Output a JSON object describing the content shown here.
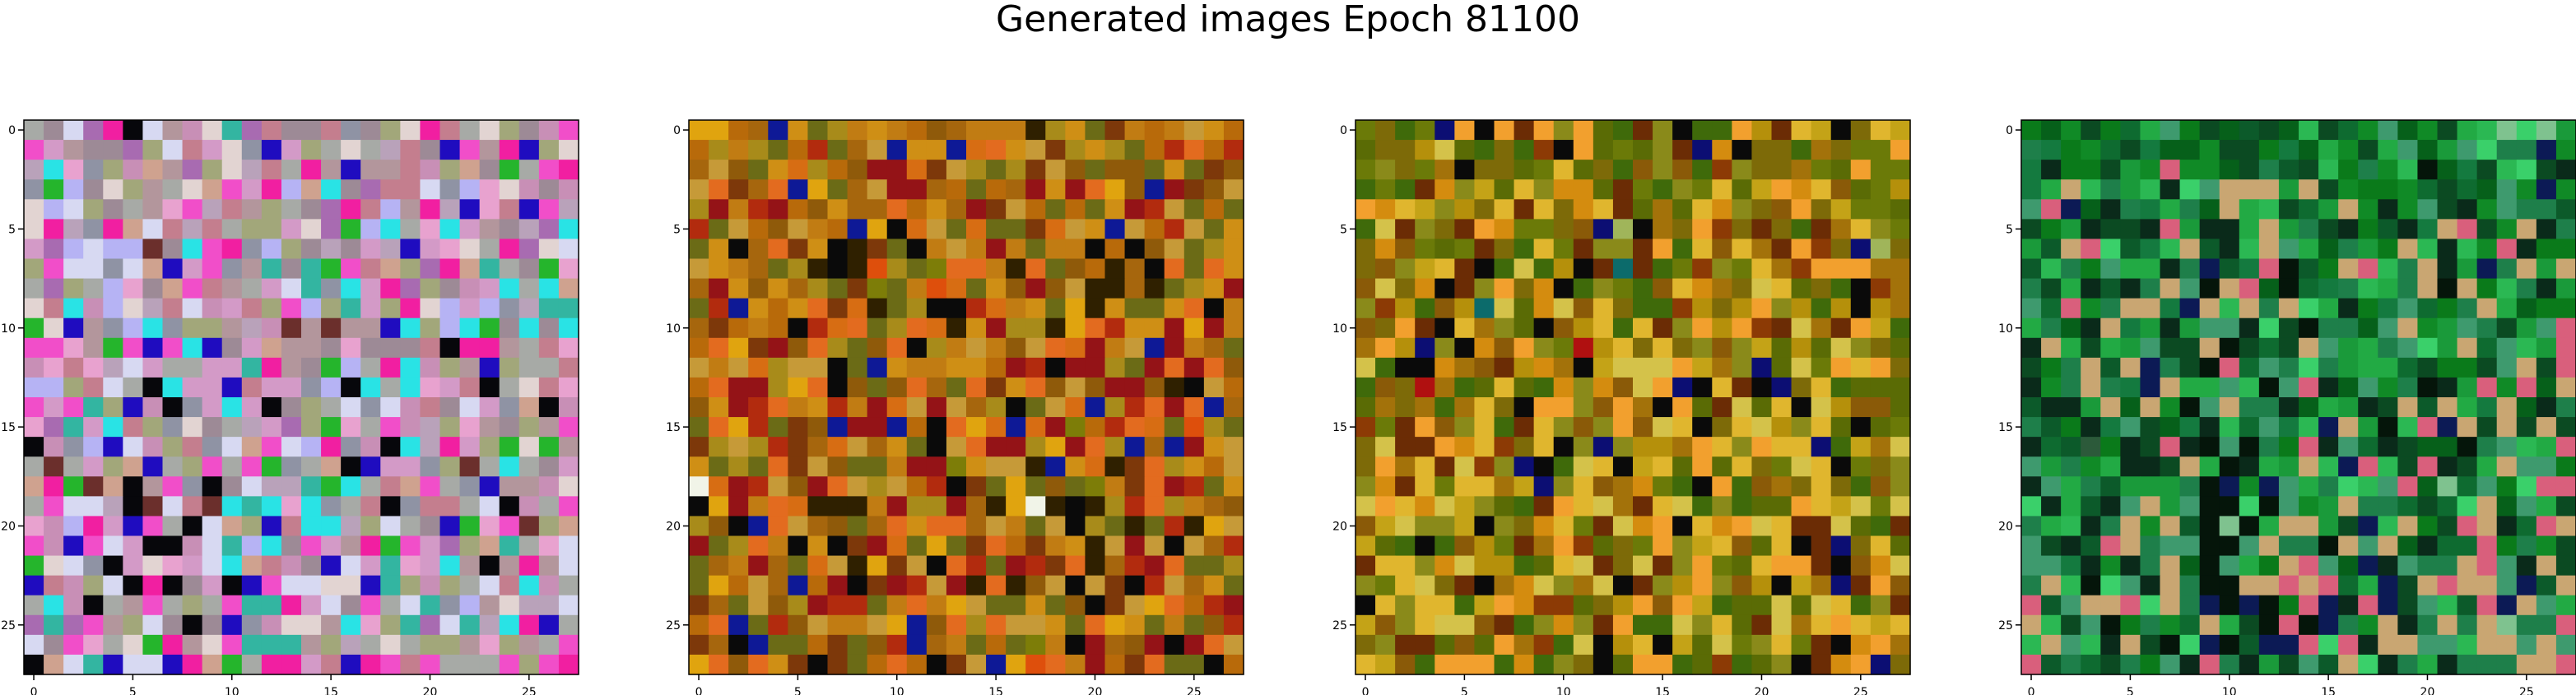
{
  "title": "Generated images Epoch 81100",
  "palettes": {
    "pink": [
      "#b3969c",
      "#9d8a96",
      "#c88fb6",
      "#b9a2ba",
      "#d39ac7",
      "#a7aaa6",
      "#e8a2cf",
      "#cfa28f",
      "#8f93a4",
      "#a86bb1",
      "#e2d4d2",
      "#d7d9f2",
      "#a2a77a",
      "#c47e8e",
      "#f14ec9",
      "#f11fa1",
      "#33b5a1",
      "#1f0cbf",
      "#07070b",
      "#29e3e5",
      "#25b52c",
      "#b6b3f4",
      "#6b2f2c"
    ],
    "orange": [
      "#c17c13",
      "#a6660d",
      "#b86a0a",
      "#cf8f15",
      "#8f5a0a",
      "#a88b1a",
      "#e0a40f",
      "#7d380a",
      "#b22b0e",
      "#d76d13",
      "#6b6b16",
      "#e36b1f",
      "#c69a38",
      "#941317",
      "#0a0a0a",
      "#2f2000",
      "#0e1996",
      "#f1f4e8",
      "#de4f0c",
      "#7d7d08"
    ],
    "olive": [
      "#7d6a08",
      "#6b7a08",
      "#8a5a08",
      "#a3720a",
      "#b5900b",
      "#5a6b05",
      "#c4a317",
      "#8c3a05",
      "#6b2c05",
      "#d48c0f",
      "#8a8a1a",
      "#3f6a0a",
      "#d4c24a",
      "#f2a02e",
      "#e0b62e",
      "#0a0a0a",
      "#0c0e73",
      "#a0b55a",
      "#b01010",
      "#0c6b6b"
    ],
    "green": [
      "#0a7a1a",
      "#108a26",
      "#06601a",
      "#1a9a3a",
      "#22aa44",
      "#0e6b30",
      "#2bb853",
      "#3ad06a",
      "#0c5a2a",
      "#147a3f",
      "#0b4a22",
      "#1e7f4a",
      "#0a2a1a",
      "#3e9a6e",
      "#c9a672",
      "#d95f7c",
      "#0c1a55",
      "#05150a",
      "#7fc28f",
      "#2c5a3a"
    ]
  },
  "chart_data": [
    {
      "type": "heatmap",
      "title": "",
      "xlabel": "",
      "ylabel": "",
      "xlim": [
        -0.5,
        27.5
      ],
      "ylim": [
        27.5,
        -0.5
      ],
      "xticks": [
        0,
        5,
        10,
        15,
        20,
        25
      ],
      "yticks": [
        0,
        5,
        10,
        15,
        20,
        25
      ],
      "grid": false,
      "palette": "pink",
      "rows": [
        "51B9FIB02AG9D11D81CAFD5AC12E",
        "E40119CBD4A8H4C5A53D1HE0FHCA",
        "3J68C2709CA3D5F0H00D2C71K5EF",
        "8KL1AC05A7E4FL7J19DDB8L6A212",
        "ALBC1506E3D0C519FDL0F3H6DHE3",
        "AF38F7BD3D5CC4A9KLJ56J40O39J",
        "49LBLLM1JEF8LCOQ14QH46A5F9AB",
        "CEBB8B7H4E80G1GKED7C9F7G51K6",
        "59C5L6O7EDNSRBG8J4F9C1P4J5J7",
        "ADJ2LA3DBP4DCELCG4CFAL4L83GG",
        "KAH08LJ8CC0Q2MNMN0HJCLJKOJ1J",
        "EE60KEHEJHOR7NNO6OO1DIFF0SD6",
        "26D63B45SRRGFNOKLSFJ2CNHC5SD",
        "LLCDBSIJRRHDRRVLIJSJ64DISAD6",
        "E4EGCHPIVRJRI1C5B8B2D1B4V7I2",
        "69G4JDC8A1SQR9CK6SE23C6N1C0E",
        "I28LHB2CD8B7EBLFV2IJ3F4CKAK0",
        "SMS4C7HSCESEKVS7IHRR8CMSJS14",
        "7FKM7INE8I1B33GKJSD7ES8HN02A",
        "5EBB3IMBDMJGJ6J8SDIVDD5BI25E",
        "62LF4HE5IB7CHDJJ3CB51HK6EMC7",
        "E2HEB4II2BGLJ1E40FKE49C7G56B",
        "KAB8I4A64BJ7D21HB4G64J0INF0B",
        "HD2CBIFI14IHEBBAAHGC2C5BDJ25",
        "5J2I50E5C5EGGF4B1E5BG8L0A33B",
        "9G9E0CB1I1H82AA0J6CG9BG3JFH5",
        "B1E65AKF0AEGGG0C35A5CC06C05E",
        "I7BGHBBHF7K5FF4DHFEDE555ECEF"
      ]
    },
    {
      "type": "heatmap",
      "title": "",
      "xlabel": "",
      "ylabel": "",
      "xlim": [
        -0.5,
        27.5
      ],
      "ylim": [
        27.5,
        -0.5
      ],
      "xticks": [
        0,
        5,
        10,
        15,
        20,
        25
      ],
      "yticks": [
        0,
        5,
        10,
        15,
        20,
        25
      ],
      "grid": false,
      "palette": "orange",
      "rows": [
        "6621G3A5030241000F53A7020C32",
        "2505A28A1CG33G9B3C7535A28B28",
        "1C4A39524DD97C5A57C4A44A3A74",
        "CB71BG6A1CDD12A21D3DB64GD74C",
        "5D08D24311B231D7C2A2A3D8CA2A",
        "8AC24C02G6E9CA9AA79C3GC28CA3",
        "A3E1B73EF7AE0C0D0A00E2E4CA53",
        "C301A5FEFI5AJBB0FBA42F1EBAB3",
        "1D34315A7JAKI9A34D4CFF1FA53D",
        "A8G323B79FA5EE8903A6F3AA3BE0",
        "17202E89BA5B9F3D55F6B833D6D0",
        "2B67D4B5A4BE50C04CB9D0CGD01A",
        "C0C95CCEAG300332D8EDD5ADBDB4",
        "2BDD56BE4A4B1AB73B4C4DD4FEC2",
        "43D8B0380D9CDC15EAC9G58BDBG1",
        "AB68A74GDDG2EB69G9DJ28B9AI5A",
        "75C58719C13AECBDD56DB5G1GD3C",
        "3A5AB7C4AA0DDJ3CCFG39F7B532C",
        "H9D8C4DBC5C28E7A6A4AJ0RBD8A3",
        "E6D0B9FFF0D55D1F6HFEF5SB5014",
        "54EGBC14A1B3BB1C0ACE5AFA8F6C",
        "DA5B0E3E7D9A6A7B2703FCDCEC18",
        "A10D1A9CF67CEB8AD87BF18DBAA5",
        "A62C1G2DE7D8CDFBF4CEC7E8C13A",
        "71AC45D88A0B06CAA3A4E7C6B28D",
        "2BGA84C00C6G4B5BCC3AB63A0A48",
        "71EGAA27A48G10A2AJ0ED14DEDBC",
        "6B4B37E7A2B2E7CG6IB0D27BAAE2"
      ]
    },
    {
      "type": "heatmap",
      "title": "",
      "xlabel": "",
      "ylabel": "",
      "xlim": [
        -0.5,
        27.5
      ],
      "ylim": [
        27.5,
        -0.5
      ],
      "xticks": [
        0,
        5,
        10,
        15,
        20,
        25
      ],
      "yticks": [
        0,
        5,
        10,
        15,
        20,
        25
      ],
      "grid": false,
      "palette": "olive",
      "rows": [
        "10B1GDFD8DAD5B8AFBBD48E6F0E6",
        "5004C5B0B7FD515A8G9F00B3011D",
        "1A013F0051E50B2A2B7A00315D11",
        "B1B89A65EA99581BA1E56D9E2514",
        "D9E6A40E8E09E8535E9A02D06115",
        "BC8A08D91102GHF30D7080B83EA1",
        "09215180BE18AA8DBE2E38D70GH0",
        "02A6E8FBCB4F8J8B17A1E37DDD33",
        "2C09F8AD09FBA1B2E930CE50BF73",
        "A74B24JC59C2E0BB7404DA4B4F43",
        "20D8FE3A5F24EBE8AD4D78C38D6B",
        "3D4GAF92DA1I4E0E0AMA6545CA05",
        "CBFF93M8493F6CCCD63AG5C1DED0",
        "B20I3B5E5B9A92CDGFE8FG0EB555",
        "5303B3E0FDDA2D3FD58C5EFC4225",
        "R18DMAEB8EAMADMCEF0EC4AE5F51",
        "0CS8D9E70EFAGA443DEADEEGB63C",
        "0D3E8C7AGFBCEF6E5D5E01CEF10A",
        "A98E1EE36GAE2391BFDB230E0B2A",
        "CDE9C6A5B8DEC38ECBAB55DE6C1C",
        "26CAA6FA09E18C9DFE9DCE88CPB8",
        "65BFB24183D7P01DA6E25EF8G0E5",
        "8EEA9C44B5EC80C8AD15EDD8F29C",
        "A1EC08F3TCA3CF8A4DA24F63G8D2",
        "FEAEEB6DT77P04D2D6B55C5CEBAS",
        "62AECC28BA9A8DBBCAE58C3EDE6E",
        "0A88525D37BCF4EF65C1AE18F9D3",
        "E62BDDDB9BA0F5DDB57B5AF89DG0"
      ]
    },
    {
      "type": "heatmap",
      "title": "",
      "xlabel": "",
      "ylabel": "",
      "xlim": [
        -0.5,
        27.5
      ],
      "ylim": [
        27.5,
        -0.5
      ],
      "xticks": [
        0,
        5,
        10,
        15,
        20,
        25
      ],
      "yticks": [
        0,
        5,
        10,
        15,
        20,
        25
      ],
      "grid": false,
      "palette": "green",
      "rows": [
        "021A054D0A28A26A51D21A46IRI3",
        "B9015A9221AA09241A4D23D7BBG1",
        "9C00A31F112AB8A60B16H29A67AC",
        "94E6B36C7DEEE3EA10015A52D1G1",
        "DFG2CB94B2E4QA53E1C1DAC1DBB8",
        "A03CAACF3CC4E3BAC08C9EFA1ECB",
        "38EF7896E8C6ED42B30E6C61FC00",
        "86B0D44CBG89FH80EF6BEC3GBE3E",
        "BA4C8CBEDHEF2H59B64BEHE06BC3",
        "D5F1BEE9GE6EBE74C09D50BE4200",
        "4B2CE93C3DDC7AHBB2DE13DBA3DF",
        "CE4A43DAAEHA5AED34BD73E5D63F",
        "A0BE8EGBAHF5DB7B3445A00ADEAF",
        "C1BEB9GE44D6HDFC2D1BHC3F1F2E",
        "8CC3E2ELHDEBBC2O3CAE8E49E2CB",
        "B80C9DA29C65D96GE3H6FGEAEAEA",
        "C58J0CAFCHDHB0FCD5CA22HBD64F",
        "D3B14CCAE4HC43E6GF6AFCA4EDD0",
        "CD4B8333BHG1GD4B76DF2IPD07FF",
        "RC48CDE3DHH7HD13EBBPAP7E2D4A",
        "B46CBE1E8HIH4EE3AG6E0AFEC5FE",
        "DAC8FEBDDHHDEBBHEDE2C55F0B1A",
        "DD9C1CBE2HD40EFD2GCDBBEFDCEA",
        "BE6H7DCEBHHEEFEF54GAEFEEDG8E",
        "F8DEEF7EBGHGH0FGCFGAD68FGED4",
        "E6ADH0B15E4AHFHGB1ECBEBEIBBF",
        "6ED6CEAH7GH8GGF7FCEEDD6EEDED",
        "F8B5AB0DCFBC3AD8E7CB4CBBBEEF"
      ]
    }
  ]
}
